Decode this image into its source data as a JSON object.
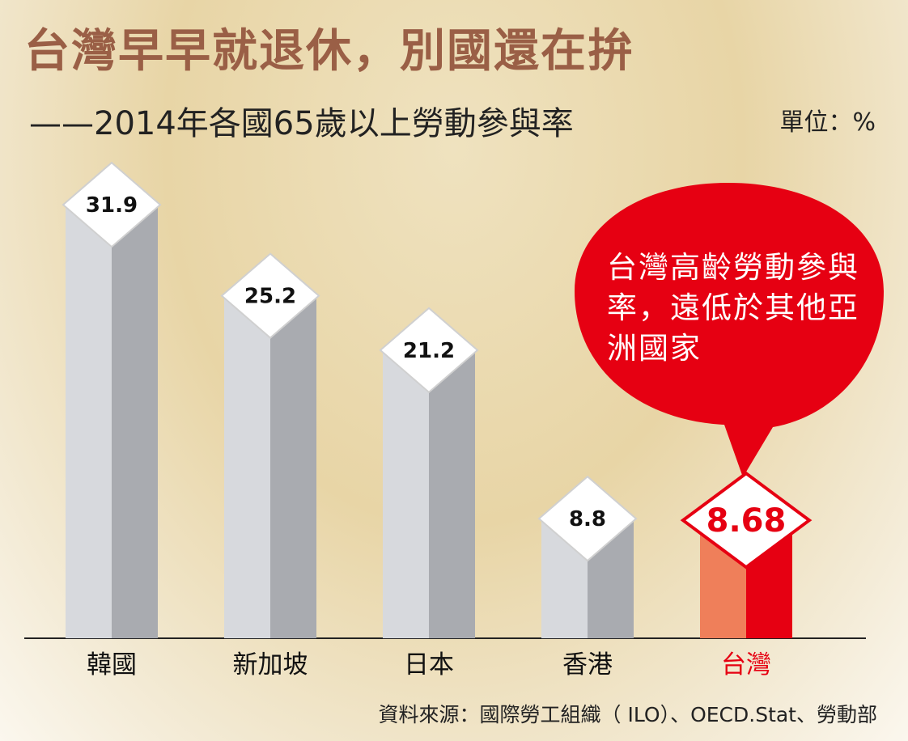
{
  "title": "台灣早早就退休，別國還在拚",
  "subtitle": "——2014年各國65歲以上勞動參與率",
  "unit_label": "單位：%",
  "source": "資料來源：國際勞工組織（ ILO）、OECD.Stat、勞動部",
  "callout": "台灣高齡勞動參與率，遠低於其他亞洲國家",
  "colors": {
    "title": "#9a5f46",
    "bar_light": "#d7d9dd",
    "bar_dark": "#a9abb0",
    "highlight_light": "#ef7f5a",
    "highlight_dark": "#e60012",
    "callout_fill": "#e60012"
  },
  "chart_data": {
    "type": "bar",
    "categories": [
      "韓國",
      "新加坡",
      "日本",
      "香港",
      "台灣"
    ],
    "values": [
      31.9,
      25.2,
      21.2,
      8.8,
      8.68
    ],
    "value_labels": [
      "31.9",
      "25.2",
      "21.2",
      "8.8",
      "8.68"
    ],
    "highlight": "台灣",
    "ylim": [
      0,
      35
    ],
    "grid": false
  }
}
